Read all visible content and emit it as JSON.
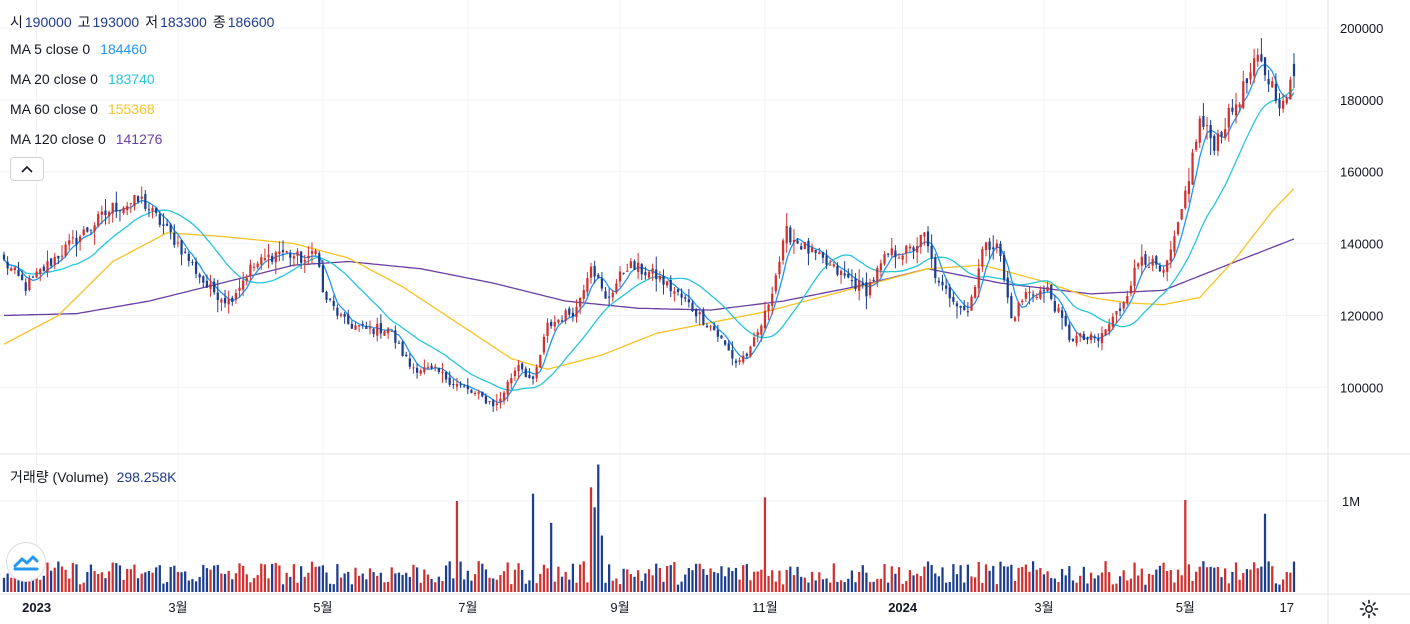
{
  "ohlc": [
    {
      "label": "시",
      "value": "190000"
    },
    {
      "label": "고",
      "value": "193000"
    },
    {
      "label": "저",
      "value": "183300"
    },
    {
      "label": "종",
      "value": "186600"
    }
  ],
  "ma_legend": [
    {
      "label": "MA 5 close 0",
      "value": "184460",
      "color": "#2196f3"
    },
    {
      "label": "MA 20 close 0",
      "value": "183740",
      "color": "#26c6da"
    },
    {
      "label": "MA 60 close 0",
      "value": "155368",
      "color": "#f7c325"
    },
    {
      "label": "MA 120 close 0",
      "value": "141276",
      "color": "#6a3fa0"
    }
  ],
  "volume_legend": {
    "label": "거래량 (Volume)",
    "value": "298.258K"
  },
  "colors": {
    "up": "#d1302f",
    "down": "#1c3e8f",
    "grid": "#f0f3fa",
    "axis_text": "#131722"
  },
  "chart_data": {
    "type": "candlestick",
    "x_ticks": [
      {
        "label": "2023",
        "index": 9,
        "bold": true
      },
      {
        "label": "3월",
        "index": 48,
        "bold": false
      },
      {
        "label": "5월",
        "index": 88,
        "bold": false
      },
      {
        "label": "7월",
        "index": 128,
        "bold": false
      },
      {
        "label": "9월",
        "index": 170,
        "bold": false
      },
      {
        "label": "11월",
        "index": 210,
        "bold": false
      },
      {
        "label": "2024",
        "index": 248,
        "bold": true
      },
      {
        "label": "3월",
        "index": 287,
        "bold": false
      },
      {
        "label": "5월",
        "index": 326,
        "bold": false
      },
      {
        "label": "17",
        "index": 354,
        "bold": false
      }
    ],
    "price_axis": {
      "min": 82000,
      "max": 205000,
      "ticks": [
        100000,
        120000,
        140000,
        160000,
        180000,
        200000
      ],
      "tick_labels": [
        "100000",
        "120000",
        "140000",
        "160000",
        "180000",
        "200000"
      ]
    },
    "volume_axis": {
      "max": 1450000,
      "ticks": [
        1000000
      ],
      "tick_labels": [
        "1M"
      ]
    },
    "close_anchors": [
      [
        0,
        135000
      ],
      [
        6,
        128000
      ],
      [
        14,
        136000
      ],
      [
        22,
        143000
      ],
      [
        30,
        150000
      ],
      [
        38,
        152000
      ],
      [
        48,
        140000
      ],
      [
        56,
        128000
      ],
      [
        62,
        124000
      ],
      [
        68,
        133000
      ],
      [
        76,
        138000
      ],
      [
        84,
        135000
      ],
      [
        86,
        140000
      ],
      [
        88,
        126000
      ],
      [
        94,
        118000
      ],
      [
        100,
        116000
      ],
      [
        106,
        116500
      ],
      [
        112,
        106000
      ],
      [
        120,
        104000
      ],
      [
        128,
        99000
      ],
      [
        136,
        95000
      ],
      [
        142,
        107000
      ],
      [
        146,
        101000
      ],
      [
        150,
        117000
      ],
      [
        158,
        122000
      ],
      [
        162,
        135000
      ],
      [
        166,
        124000
      ],
      [
        172,
        134000
      ],
      [
        180,
        131000
      ],
      [
        188,
        124000
      ],
      [
        196,
        116000
      ],
      [
        202,
        107000
      ],
      [
        206,
        110000
      ],
      [
        210,
        120000
      ],
      [
        216,
        143000
      ],
      [
        222,
        138000
      ],
      [
        230,
        132000
      ],
      [
        238,
        127000
      ],
      [
        244,
        137000
      ],
      [
        250,
        138000
      ],
      [
        254,
        142000
      ],
      [
        258,
        128000
      ],
      [
        262,
        125000
      ],
      [
        266,
        121000
      ],
      [
        270,
        138000
      ],
      [
        274,
        141000
      ],
      [
        278,
        119000
      ],
      [
        282,
        126000
      ],
      [
        288,
        127000
      ],
      [
        294,
        114000
      ],
      [
        302,
        113000
      ],
      [
        308,
        122000
      ],
      [
        314,
        137000
      ],
      [
        320,
        131000
      ],
      [
        324,
        144000
      ],
      [
        330,
        174000
      ],
      [
        334,
        168000
      ],
      [
        340,
        179000
      ],
      [
        346,
        191000
      ],
      [
        350,
        184000
      ],
      [
        353,
        178000
      ],
      [
        356,
        186600
      ]
    ],
    "ma120_anchors": [
      [
        0,
        120000
      ],
      [
        20,
        120500
      ],
      [
        40,
        124000
      ],
      [
        60,
        129000
      ],
      [
        80,
        134000
      ],
      [
        95,
        135000
      ],
      [
        115,
        133000
      ],
      [
        135,
        129000
      ],
      [
        155,
        124000
      ],
      [
        175,
        122000
      ],
      [
        195,
        121500
      ],
      [
        215,
        124000
      ],
      [
        235,
        128000
      ],
      [
        255,
        133000
      ],
      [
        275,
        129000
      ],
      [
        300,
        126000
      ],
      [
        320,
        127000
      ],
      [
        340,
        135000
      ],
      [
        356,
        141276
      ]
    ],
    "ma60_anchors": [
      [
        0,
        112000
      ],
      [
        15,
        120000
      ],
      [
        30,
        135000
      ],
      [
        45,
        143000
      ],
      [
        60,
        142000
      ],
      [
        80,
        140000
      ],
      [
        95,
        136000
      ],
      [
        110,
        128000
      ],
      [
        125,
        118000
      ],
      [
        140,
        108000
      ],
      [
        150,
        105000
      ],
      [
        165,
        109000
      ],
      [
        180,
        115000
      ],
      [
        195,
        118000
      ],
      [
        210,
        121000
      ],
      [
        225,
        125000
      ],
      [
        240,
        129000
      ],
      [
        255,
        133000
      ],
      [
        270,
        134000
      ],
      [
        285,
        130000
      ],
      [
        300,
        125000
      ],
      [
        310,
        123500
      ],
      [
        320,
        123000
      ],
      [
        330,
        125000
      ],
      [
        340,
        136000
      ],
      [
        350,
        149000
      ],
      [
        356,
        155368
      ]
    ],
    "last_index": 356
  }
}
